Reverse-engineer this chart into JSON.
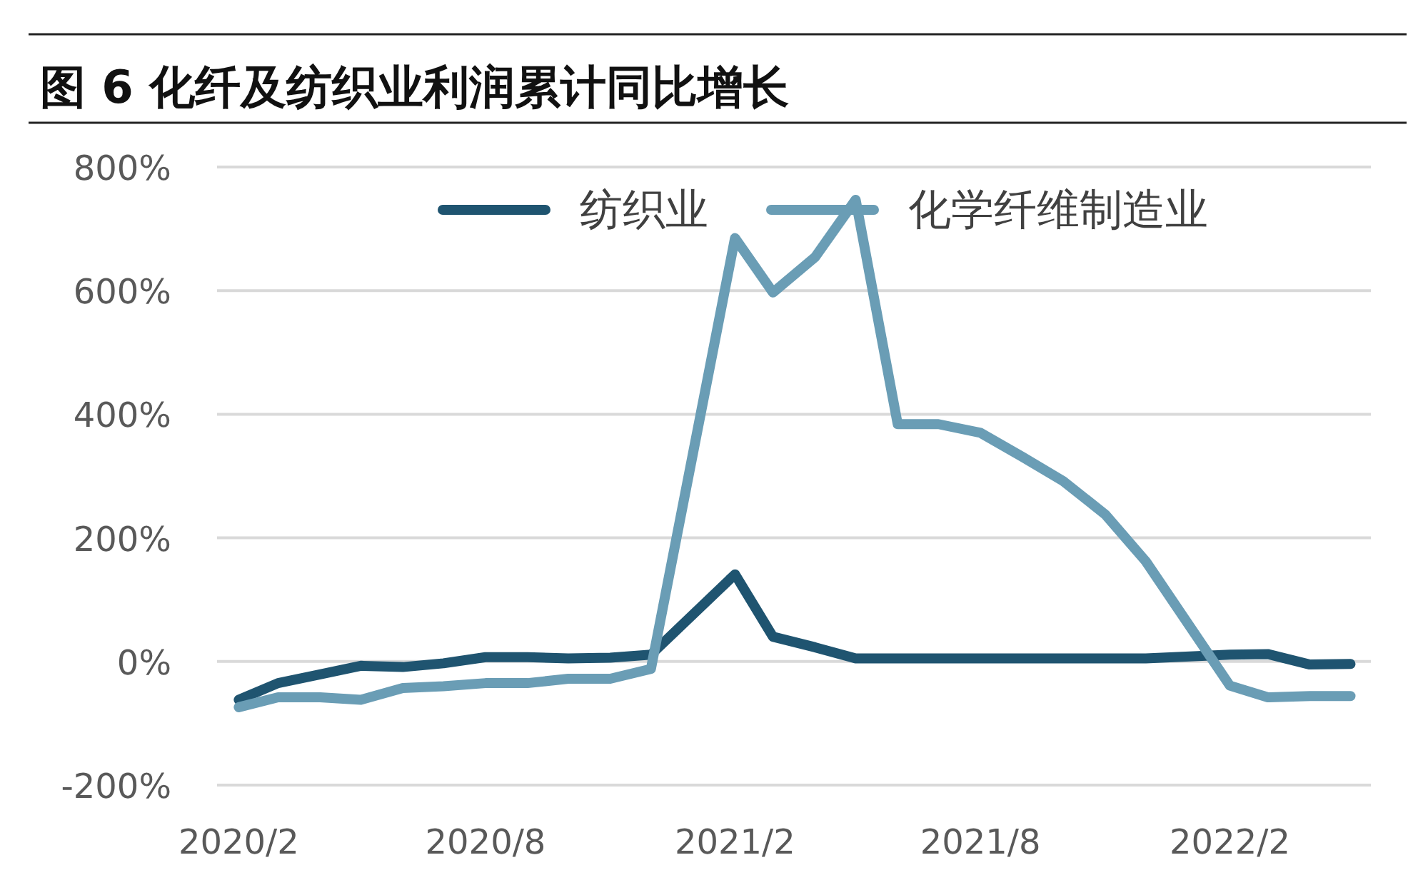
{
  "chart_data": {
    "type": "line",
    "title": "图 6  化纤及纺织业利润累计同比增长",
    "x": [
      "2020-02",
      "2020-03",
      "2020-04",
      "2020-05",
      "2020-06",
      "2020-07",
      "2020-08",
      "2020-09",
      "2020-10",
      "2020-11",
      "2020-12",
      "2021-02",
      "2021-03",
      "2021-04",
      "2021-05",
      "2021-06",
      "2021-07",
      "2021-08",
      "2021-09",
      "2021-10",
      "2021-11",
      "2021-12",
      "2022-02",
      "2022-03",
      "2022-04",
      "2022-05"
    ],
    "series": [
      {
        "name": "纺织业",
        "color": "#1f5470",
        "values": [
          -62,
          -35,
          -21,
          -7,
          -9,
          -3,
          7,
          7,
          5,
          6,
          11,
          141,
          40,
          23,
          5,
          5,
          5,
          5,
          5,
          5,
          5,
          5,
          11,
          12,
          -5,
          -4
        ]
      },
      {
        "name": "化学纤维制造业",
        "color": "#6a9db5",
        "values": [
          -74,
          -58,
          -58,
          -62,
          -43,
          -40,
          -35,
          -35,
          -28,
          -28,
          -12,
          685,
          597,
          654,
          747,
          384,
          384,
          370,
          331,
          292,
          238,
          162,
          -39,
          -58,
          -56,
          -56
        ]
      }
    ],
    "xlim": [
      "2020-01-16",
      "2022-05-16"
    ],
    "xticks": [
      {
        "value": "2020-02",
        "label": "2020/2"
      },
      {
        "value": "2020-08",
        "label": "2020/8"
      },
      {
        "value": "2021-02",
        "label": "2021/2"
      },
      {
        "value": "2021-08",
        "label": "2021/8"
      },
      {
        "value": "2022-02",
        "label": "2022/2"
      }
    ],
    "ylim": [
      -200,
      800
    ],
    "yticks": [
      {
        "value": -200,
        "label": "-200%"
      },
      {
        "value": 0,
        "label": "0%"
      },
      {
        "value": 200,
        "label": "200%"
      },
      {
        "value": 400,
        "label": "400%"
      },
      {
        "value": 600,
        "label": "600%"
      },
      {
        "value": 800,
        "label": "800%"
      }
    ],
    "grid": "y",
    "legend": "top"
  }
}
